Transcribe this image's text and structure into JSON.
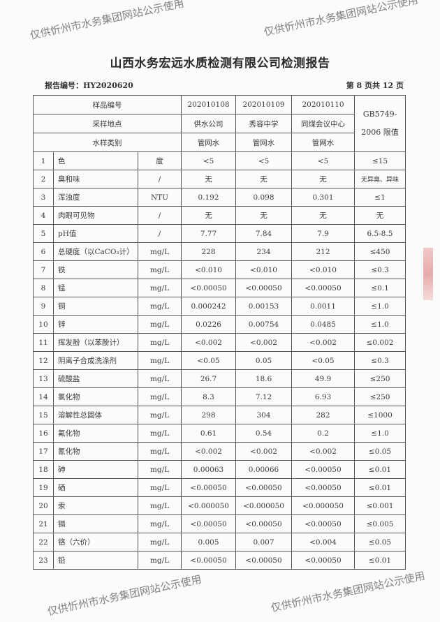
{
  "title": "山西水务宏远水质检测有限公司检测报告",
  "report_no": "报告编号：HY2020620",
  "page_no": "第 8 页共 12 页",
  "header": {
    "sample_id_label": "样品编号",
    "location_label": "采样地点",
    "type_label": "水样类别",
    "standard_label": "GB5749-2006 限值",
    "samples": [
      {
        "id": "202010108",
        "location": "供水公司",
        "type": "管网水"
      },
      {
        "id": "202010109",
        "location": "秀容中学",
        "type": "管网水"
      },
      {
        "id": "202010110",
        "location": "同煤会议中心",
        "type": "管网水"
      }
    ]
  },
  "rows": [
    {
      "no": "1",
      "item": "色",
      "unit": "度",
      "v": [
        "<5",
        "<5",
        "<5"
      ],
      "limit": "≤15"
    },
    {
      "no": "2",
      "item": "臭和味",
      "unit": "/",
      "v": [
        "无",
        "无",
        "无"
      ],
      "limit": "无异臭、异味"
    },
    {
      "no": "3",
      "item": "浑浊度",
      "unit": "NTU",
      "v": [
        "0.192",
        "0.098",
        "0.301"
      ],
      "limit": "≤1"
    },
    {
      "no": "4",
      "item": "肉眼可见物",
      "unit": "/",
      "v": [
        "无",
        "无",
        "无"
      ],
      "limit": "无"
    },
    {
      "no": "5",
      "item": "pH值",
      "unit": "/",
      "v": [
        "7.77",
        "7.84",
        "7.9"
      ],
      "limit": "6.5-8.5"
    },
    {
      "no": "6",
      "item": "总硬度（以CaCO₃计）",
      "unit": "mg/L",
      "v": [
        "228",
        "234",
        "212"
      ],
      "limit": "≤450"
    },
    {
      "no": "7",
      "item": "铁",
      "unit": "mg/L",
      "v": [
        "<0.010",
        "<0.010",
        "<0.010"
      ],
      "limit": "≤0.3"
    },
    {
      "no": "8",
      "item": "锰",
      "unit": "mg/L",
      "v": [
        "<0.00050",
        "<0.00050",
        "<0.00050"
      ],
      "limit": "≤0.1"
    },
    {
      "no": "9",
      "item": "铜",
      "unit": "mg/L",
      "v": [
        "0.000242",
        "0.00153",
        "0.0011"
      ],
      "limit": "≤1.0"
    },
    {
      "no": "10",
      "item": "锌",
      "unit": "mg/L",
      "v": [
        "0.0226",
        "0.00754",
        "0.0485"
      ],
      "limit": "≤1.0"
    },
    {
      "no": "11",
      "item": "挥发酚（以苯酚计）",
      "unit": "mg/L",
      "v": [
        "<0.002",
        "<0.002",
        "<0.002"
      ],
      "limit": "≤0.002"
    },
    {
      "no": "12",
      "item": "阴离子合成洗涤剂",
      "unit": "mg/L",
      "v": [
        "<0.05",
        "0.05",
        "<0.05"
      ],
      "limit": "≤0.3"
    },
    {
      "no": "13",
      "item": "硫酸盐",
      "unit": "mg/L",
      "v": [
        "26.7",
        "18.6",
        "49.9"
      ],
      "limit": "≤250"
    },
    {
      "no": "14",
      "item": "氯化物",
      "unit": "mg/L",
      "v": [
        "8.3",
        "7.12",
        "6.93"
      ],
      "limit": "≤250"
    },
    {
      "no": "15",
      "item": "溶解性总固体",
      "unit": "mg/L",
      "v": [
        "298",
        "304",
        "282"
      ],
      "limit": "≤1000"
    },
    {
      "no": "16",
      "item": "氟化物",
      "unit": "mg/L",
      "v": [
        "0.61",
        "0.54",
        "0.2"
      ],
      "limit": "≤1.0"
    },
    {
      "no": "17",
      "item": "氰化物",
      "unit": "mg/L",
      "v": [
        "<0.002",
        "<0.002",
        "<0.002"
      ],
      "limit": "≤0.05"
    },
    {
      "no": "18",
      "item": "砷",
      "unit": "mg/L",
      "v": [
        "0.00063",
        "0.00066",
        "<0.00050"
      ],
      "limit": "≤0.01"
    },
    {
      "no": "19",
      "item": "硒",
      "unit": "mg/L",
      "v": [
        "<0.00050",
        "<0.00050",
        "<0.00050"
      ],
      "limit": "≤0.01"
    },
    {
      "no": "20",
      "item": "汞",
      "unit": "mg/L",
      "v": [
        "<0.000050",
        "<0.000050",
        "<0.000050"
      ],
      "limit": "≤0.001"
    },
    {
      "no": "21",
      "item": "镉",
      "unit": "mg/L",
      "v": [
        "<0.00050",
        "<0.00050",
        "<0.00050"
      ],
      "limit": "≤0.005"
    },
    {
      "no": "22",
      "item": "铬（六价）",
      "unit": "mg/L",
      "v": [
        "0.005",
        "0.007",
        "<0.004"
      ],
      "limit": "≤0.05"
    },
    {
      "no": "23",
      "item": "铅",
      "unit": "mg/L",
      "v": [
        "<0.00050",
        "<0.00050",
        "<0.00050"
      ],
      "limit": "≤0.01"
    }
  ],
  "watermark": "仅供忻州市水务集团网站公示使用"
}
